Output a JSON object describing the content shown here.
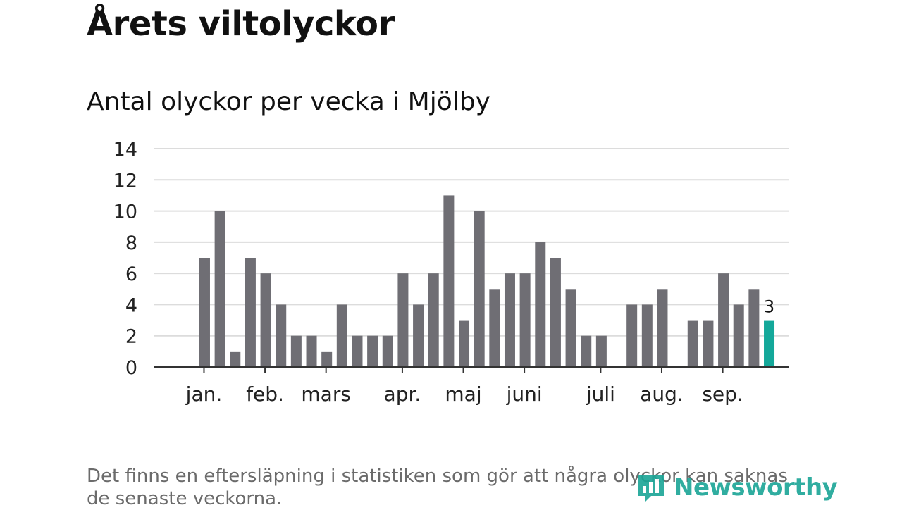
{
  "header": {
    "title": "Årets viltolyckor",
    "subtitle": "Antal olyckor per vecka i Mjölby"
  },
  "footer": {
    "note": "Det finns en eftersläpning i statistiken som gör att några olyckor kan saknas de senaste veckorna.",
    "brand": "Newsworthy"
  },
  "colors": {
    "bar": "#6f6e74",
    "highlight": "#14a89a",
    "grid": "#dcdcdc",
    "axis": "#333333",
    "brand": "#1aa596"
  },
  "chart_data": {
    "type": "bar",
    "title": "Antal olyckor per vecka i Mjölby",
    "xlabel": "",
    "ylabel": "",
    "ylim": [
      0,
      14
    ],
    "yticks": [
      0,
      2,
      4,
      6,
      8,
      10,
      12,
      14
    ],
    "week_slots": 40,
    "values": [
      null,
      7,
      10,
      1,
      7,
      6,
      4,
      2,
      2,
      1,
      4,
      2,
      2,
      2,
      6,
      4,
      6,
      11,
      3,
      10,
      5,
      6,
      6,
      8,
      7,
      5,
      2,
      2,
      0,
      4,
      4,
      5,
      0,
      3,
      3,
      6,
      4,
      5,
      3,
      null
    ],
    "highlight_index": 38,
    "highlight_label": "3",
    "month_ticks": [
      {
        "label": "jan.",
        "week": 1
      },
      {
        "label": "feb.",
        "week": 5
      },
      {
        "label": "mars",
        "week": 9
      },
      {
        "label": "apr.",
        "week": 14
      },
      {
        "label": "maj",
        "week": 18
      },
      {
        "label": "juni",
        "week": 22
      },
      {
        "label": "juli",
        "week": 27
      },
      {
        "label": "aug.",
        "week": 31
      },
      {
        "label": "sep.",
        "week": 35
      }
    ],
    "grid": true
  }
}
